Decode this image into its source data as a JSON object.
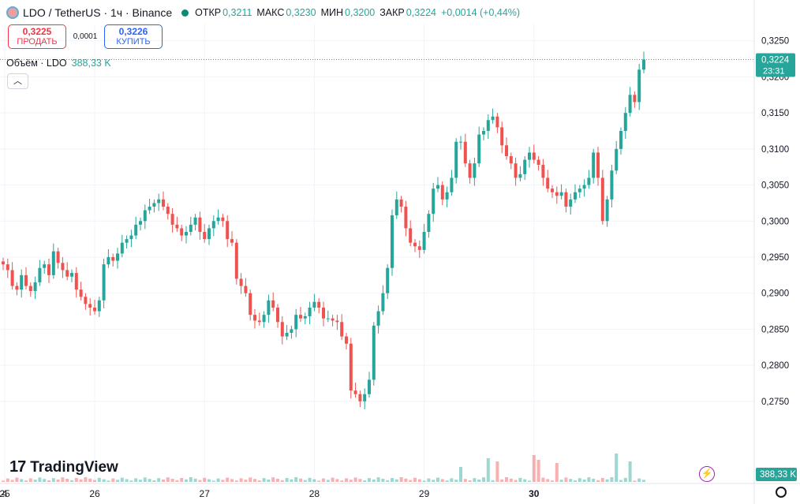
{
  "header": {
    "symbol": "LDO / TetherUS · 1ч · Binance",
    "ohlc": [
      {
        "label": "ОТКР",
        "value": "0,3211"
      },
      {
        "label": "МАКС",
        "value": "0,3230"
      },
      {
        "label": "МИН",
        "value": "0,3200"
      },
      {
        "label": "ЗАКР",
        "value": "0,3224"
      }
    ],
    "change": "+0,0014 (+0,44%)"
  },
  "trade": {
    "sell_price": "0,3225",
    "sell_label": "ПРОДАТЬ",
    "spread": "0,0001",
    "buy_price": "0,3226",
    "buy_label": "КУПИТЬ"
  },
  "volume": {
    "label": "Объём · LDO",
    "value": "388,33 K"
  },
  "brand": {
    "name": "TradingView"
  },
  "colors": {
    "up": "#26a69a",
    "down": "#ef5350",
    "grid": "#f0f3fa"
  },
  "chart_data": {
    "type": "candlestick",
    "y_ticks": [
      "0,3250",
      "0,3200",
      "0,3150",
      "0,3100",
      "0,3050",
      "0,3000",
      "0,2950",
      "0,2900",
      "0,2850",
      "0,2800",
      "0,2750"
    ],
    "ylim": [
      0.2705,
      0.3265
    ],
    "x_ticks": [
      {
        "label": "4",
        "index": -28
      },
      {
        "label": "25",
        "index": -4
      },
      {
        "label": "26",
        "index": 20
      },
      {
        "label": "27",
        "index": 44
      },
      {
        "label": "28",
        "index": 68
      },
      {
        "label": "29",
        "index": 92
      },
      {
        "label": "30",
        "index": 116
      }
    ],
    "last_price": {
      "price": "0,3224",
      "countdown": "23:31",
      "value": 0.3224
    },
    "volume_label": "388,33 K",
    "closes": [
      0.294,
      0.2932,
      0.291,
      0.2905,
      0.2925,
      0.291,
      0.2903,
      0.2915,
      0.2935,
      0.294,
      0.2925,
      0.2958,
      0.2942,
      0.2932,
      0.2923,
      0.2928,
      0.2905,
      0.2895,
      0.2885,
      0.288,
      0.2875,
      0.289,
      0.294,
      0.295,
      0.2945,
      0.2955,
      0.297,
      0.2975,
      0.298,
      0.2995,
      0.3,
      0.3015,
      0.302,
      0.3025,
      0.303,
      0.302,
      0.301,
      0.2995,
      0.299,
      0.298,
      0.2985,
      0.2995,
      0.3005,
      0.2985,
      0.2975,
      0.299,
      0.3,
      0.3005,
      0.3,
      0.2975,
      0.297,
      0.292,
      0.291,
      0.29,
      0.287,
      0.2862,
      0.286,
      0.287,
      0.289,
      0.288,
      0.286,
      0.284,
      0.2845,
      0.285,
      0.287,
      0.2865,
      0.2868,
      0.288,
      0.2888,
      0.288,
      0.2865,
      0.2865,
      0.2862,
      0.286,
      0.284,
      0.283,
      0.2765,
      0.276,
      0.275,
      0.276,
      0.278,
      0.2855,
      0.2875,
      0.29,
      0.2935,
      0.3008,
      0.303,
      0.302,
      0.299,
      0.297,
      0.2965,
      0.296,
      0.2985,
      0.301,
      0.3045,
      0.305,
      0.303,
      0.304,
      0.306,
      0.311,
      0.311,
      0.308,
      0.306,
      0.308,
      0.312,
      0.3125,
      0.314,
      0.3145,
      0.313,
      0.3105,
      0.309,
      0.308,
      0.306,
      0.3065,
      0.3085,
      0.3095,
      0.3085,
      0.3078,
      0.306,
      0.3045,
      0.304,
      0.3035,
      0.304,
      0.302,
      0.303,
      0.304,
      0.3045,
      0.305,
      0.306,
      0.3095,
      0.306,
      0.3,
      0.303,
      0.307,
      0.31,
      0.3125,
      0.315,
      0.3175,
      0.3165,
      0.321,
      0.3224
    ],
    "volume_points": [
      {
        "index": 100,
        "value": 95
      },
      {
        "index": 106,
        "value": 150
      },
      {
        "index": 108,
        "value": 130
      },
      {
        "index": 116,
        "value": 170
      },
      {
        "index": 117,
        "value": 140
      },
      {
        "index": 121,
        "value": 120
      },
      {
        "index": 134,
        "value": 180
      },
      {
        "index": 137,
        "value": 130
      }
    ]
  }
}
